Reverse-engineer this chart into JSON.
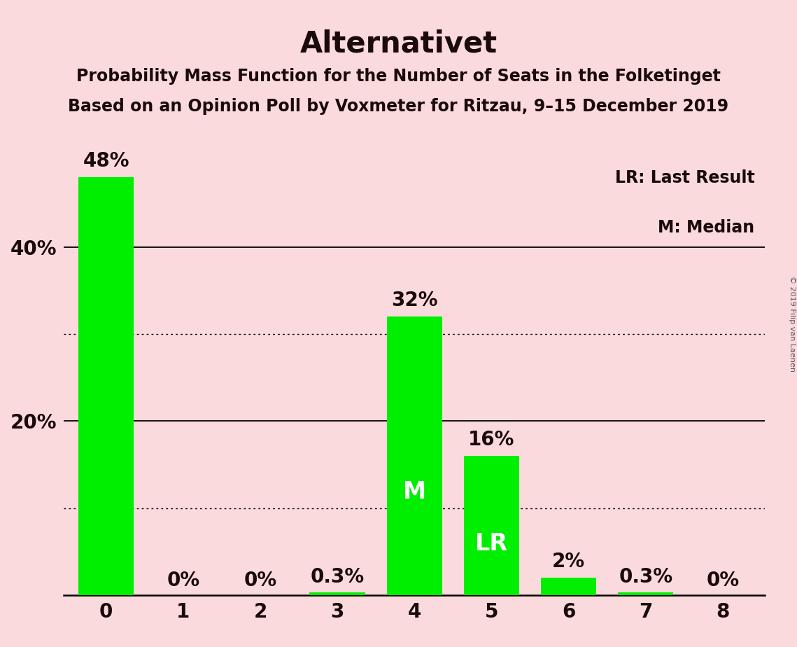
{
  "title": "Alternativet",
  "subtitle1": "Probability Mass Function for the Number of Seats in the Folketinget",
  "subtitle2": "Based on an Opinion Poll by Voxmeter for Ritzau, 9–15 December 2019",
  "categories": [
    0,
    1,
    2,
    3,
    4,
    5,
    6,
    7,
    8
  ],
  "values": [
    48,
    0,
    0,
    0.3,
    32,
    16,
    2,
    0.3,
    0
  ],
  "bar_labels": [
    "48%",
    "0%",
    "0%",
    "0.3%",
    "32%",
    "16%",
    "2%",
    "0.3%",
    "0%"
  ],
  "bar_color": "#00ee00",
  "background_color": "#fadadd",
  "text_color": "#1a0a0a",
  "white_text_color": "#ffffff",
  "median_bar_idx": 4,
  "lr_bar_idx": 5,
  "median_label": "M",
  "lr_label": "LR",
  "legend_lr": "LR: Last Result",
  "legend_m": "M: Median",
  "copyright": "© 2019 Filip van Laenen",
  "ylim": [
    0,
    52
  ],
  "solid_gridlines": [
    20,
    40
  ],
  "dotted_gridlines": [
    10,
    30
  ],
  "yticks_shown": [
    20,
    40
  ],
  "ytick_labels_shown": [
    "20%",
    "40%"
  ],
  "title_fontsize": 30,
  "subtitle_fontsize": 17,
  "bar_label_fontsize": 20,
  "axis_tick_fontsize": 20,
  "legend_fontsize": 17,
  "inline_label_fontsize": 24
}
